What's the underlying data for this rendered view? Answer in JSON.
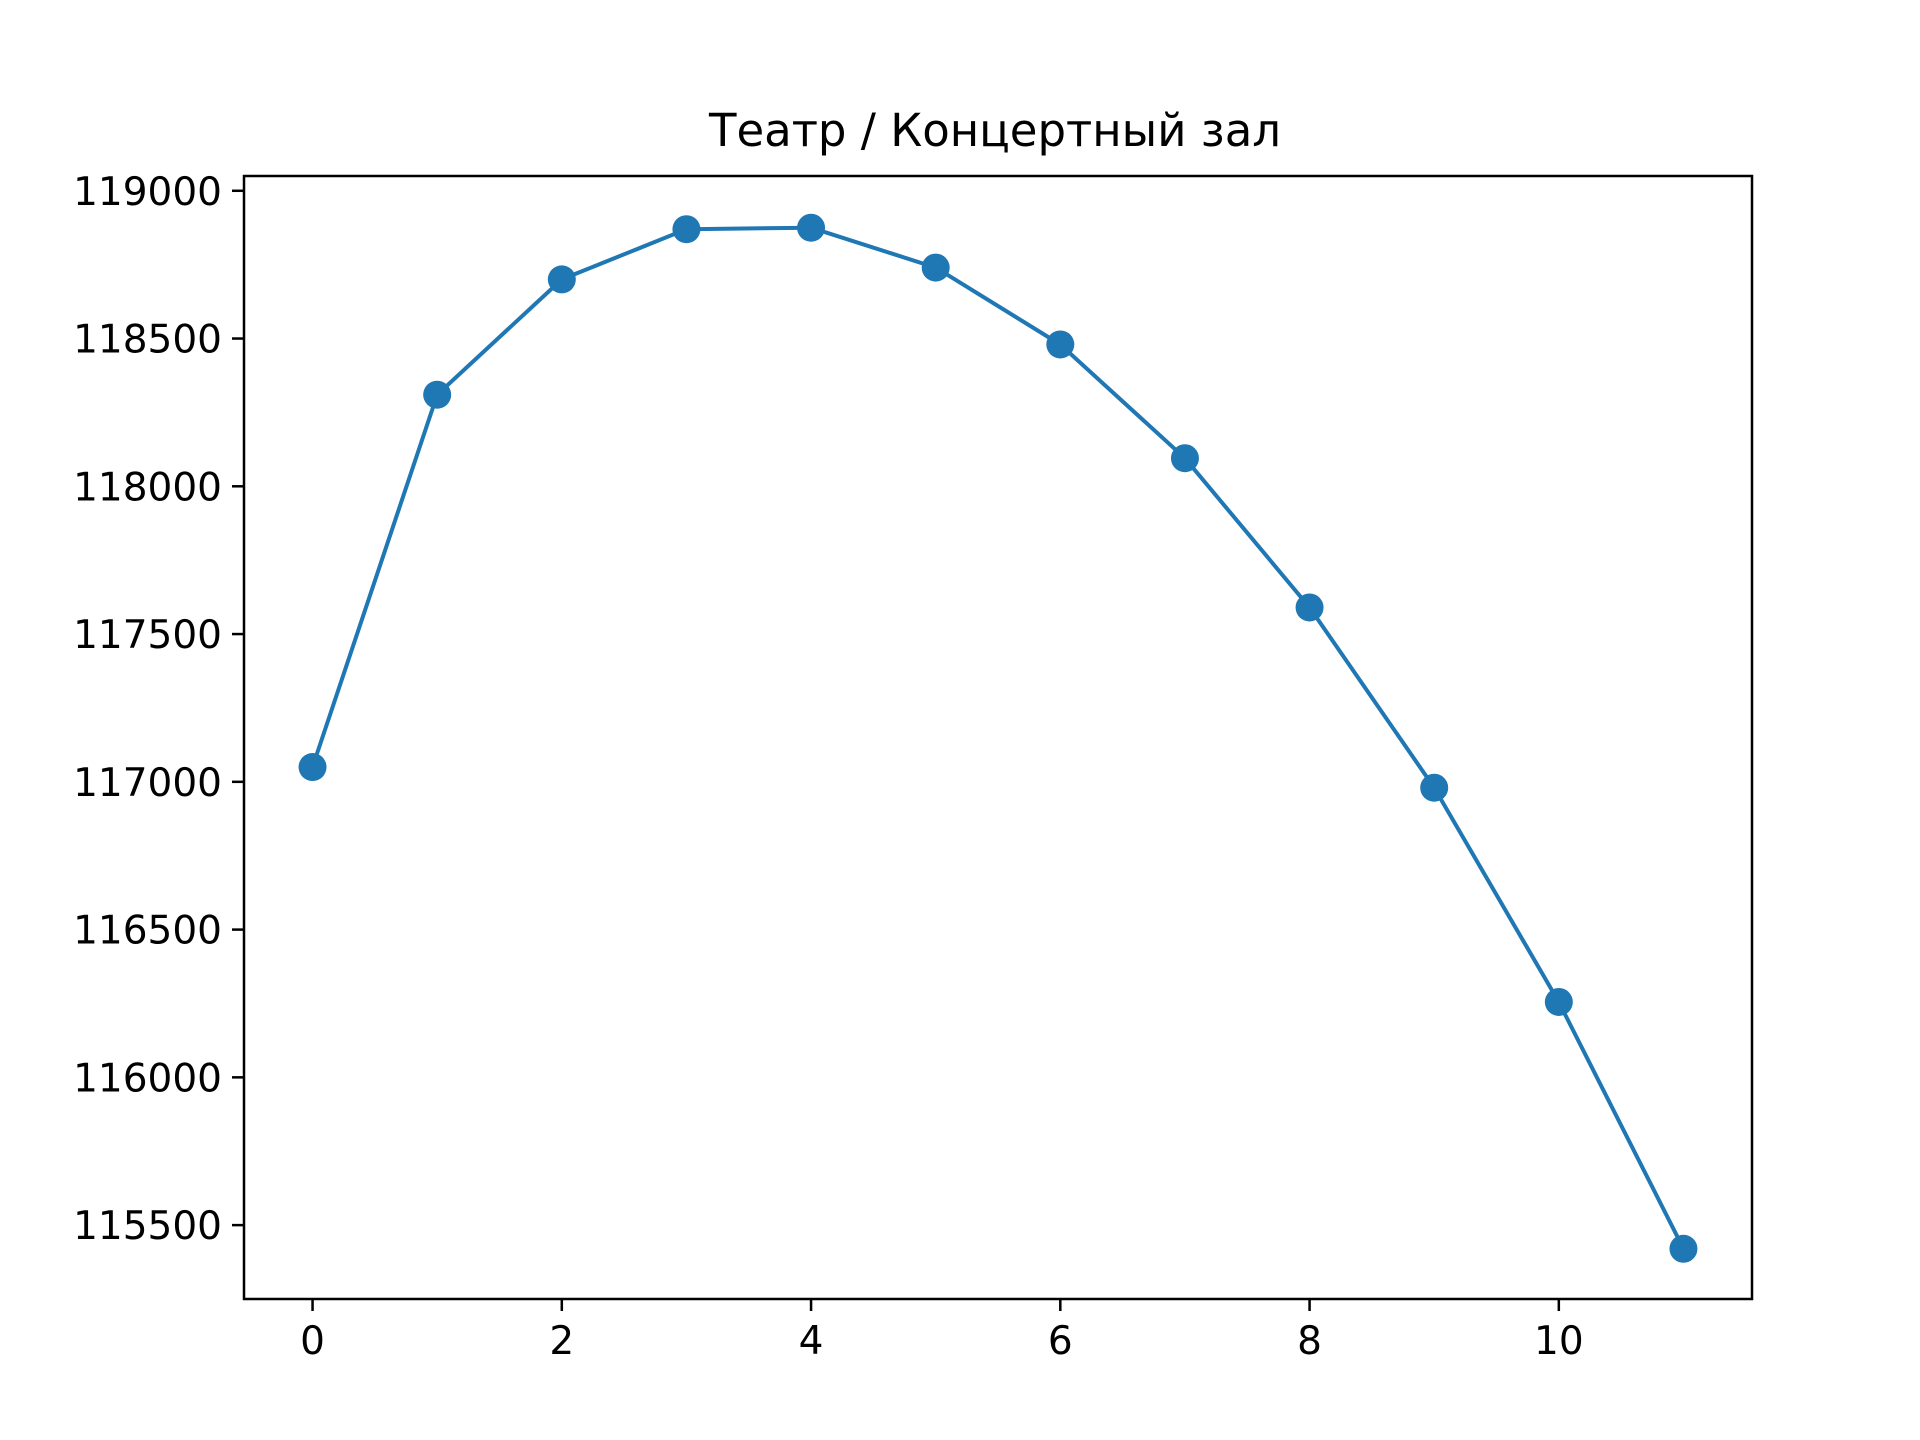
{
  "chart_data": {
    "type": "line",
    "title": "Театр / Концертный зал",
    "xlabel": "",
    "ylabel": "",
    "x": [
      0,
      1,
      2,
      3,
      4,
      5,
      6,
      7,
      8,
      9,
      10,
      11
    ],
    "series": [
      {
        "values": [
          117050,
          118310,
          118700,
          118870,
          118875,
          118740,
          118480,
          118095,
          117590,
          116980,
          116255,
          115420
        ],
        "color": "#1f77b4",
        "marker": "circle"
      }
    ],
    "xlim": [
      -0.55,
      11.55
    ],
    "ylim": [
      115250,
      119050
    ],
    "xticks": [
      0,
      2,
      4,
      6,
      8,
      10
    ],
    "yticks": [
      115500,
      116000,
      116500,
      117000,
      117500,
      118000,
      118500,
      119000
    ],
    "grid": false,
    "legend": "none"
  }
}
